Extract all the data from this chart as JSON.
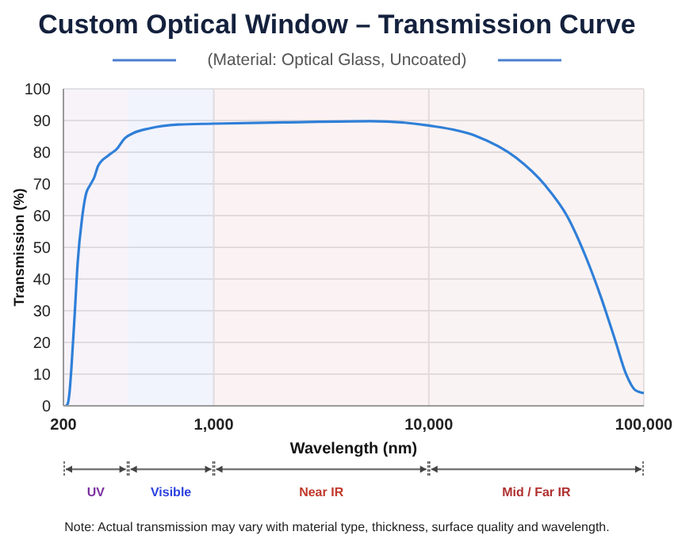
{
  "chart_data": {
    "type": "line",
    "title": "Custom Optical Window – Transmission Curve",
    "subtitle": "(Material: Optical Glass, Uncoated)",
    "xlabel": "Wavelength (nm)",
    "ylabel": "Transmission (%)",
    "x": [
      205,
      209,
      213,
      218,
      226,
      233,
      244,
      255,
      266,
      278,
      290,
      324,
      354,
      386,
      422,
      502,
      682,
      1000,
      2110,
      5370,
      10000,
      16450,
      25400,
      34700,
      44500,
      53700,
      62700,
      73300,
      83000,
      91000,
      100000
    ],
    "series": [
      {
        "color": "#2f7fd8",
        "values": [
          0,
          0.5,
          3.6,
          12.3,
          29.7,
          45.3,
          59,
          67,
          69.6,
          72,
          75.7,
          79,
          81,
          84.4,
          86,
          87.5,
          88.7,
          89,
          89.4,
          89.8,
          88.4,
          85.2,
          78.3,
          69.6,
          59.2,
          47,
          34.9,
          21,
          9.7,
          5,
          4
        ]
      }
    ],
    "log": "x",
    "xlim": [
      200,
      100000
    ],
    "xticks": [
      {
        "value": 200,
        "label": "200"
      },
      {
        "value": 1000,
        "label": "1,000"
      },
      {
        "value": 10000,
        "label": "10,000"
      },
      {
        "value": 100000,
        "label": "100,000"
      }
    ],
    "ylim": [
      0,
      100
    ],
    "yticks": [
      0,
      10,
      20,
      30,
      40,
      50,
      60,
      70,
      80,
      90,
      100
    ],
    "grid": true,
    "legend": false,
    "marker": "none",
    "line_style": "solid",
    "bands": [
      {
        "axis": "x",
        "from": 200,
        "to": 400,
        "label": "UV",
        "color": "#7b2fa0"
      },
      {
        "axis": "x",
        "from": 400,
        "to": 1000,
        "label": "Visible",
        "color": "#2a3fe0"
      },
      {
        "axis": "x",
        "from": 1000,
        "to": 10000,
        "label": "Near IR",
        "color": "#c0392b"
      },
      {
        "axis": "x",
        "from": 10000,
        "to": 100000,
        "label": "Mid / Far IR",
        "color": "#b03030"
      }
    ],
    "annotations": [
      "Note: Actual transmission may vary with material type, thickness, surface quality and wavelength."
    ]
  }
}
